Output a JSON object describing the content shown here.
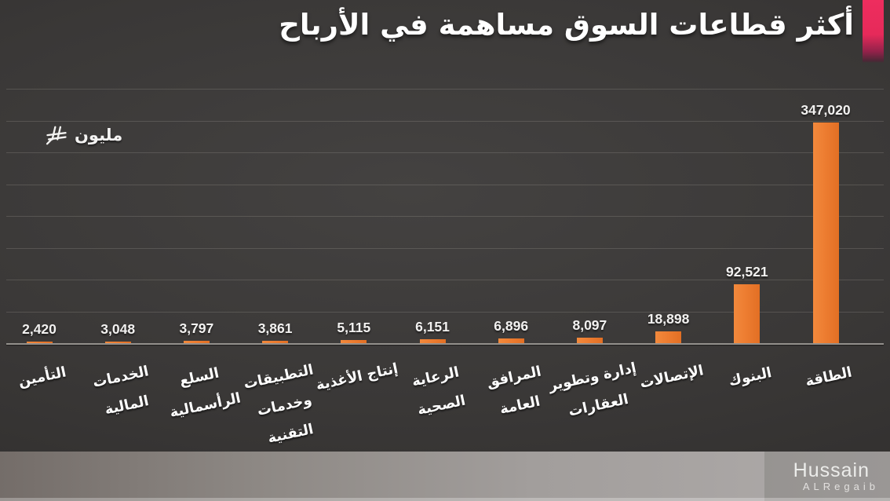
{
  "title": "أكثر قطاعات السوق مساهمة في الأرباح",
  "unit": {
    "label": "مليون",
    "currency_icon": "saudi-riyal-currency-icon",
    "full_unit": "مليون ريال"
  },
  "watermark": {
    "name": "Hussain",
    "surname": "ALRegaib"
  },
  "colors": {
    "bar": "#ED7D31",
    "accent_pink": "#E62A5B",
    "background": "#3A3837",
    "gridline": "#56534F",
    "axis": "#93908C",
    "text": "#FFFFFF",
    "bottom_strip": "#A29E9C"
  },
  "chart_data": {
    "type": "bar",
    "title": "أكثر قطاعات السوق مساهمة في الأرباح",
    "unit": "مليون ريال",
    "direction": "rtl",
    "note": "arrays listed in visual left-to-right order; chart reads right-to-left with largest sector at right",
    "categories": [
      "التأمين",
      "الخدمات المالية",
      "السلع الرأسمالية",
      "التطبيقات وخدمات التقنية",
      "إنتاج الأغذية",
      "الرعاية الصحية",
      "المرافق العامة",
      "إدارة وتطوير العقارات",
      "الإتصالات",
      "البنوك",
      "الطاقة"
    ],
    "category_lines": [
      [
        "التأمين"
      ],
      [
        "الخدمات",
        "المالية"
      ],
      [
        "السلع",
        "الرأسمالية"
      ],
      [
        "التطبيقات",
        "وخدمات",
        "التقنية"
      ],
      [
        "إنتاج الأغذية"
      ],
      [
        "الرعاية",
        "الصحية"
      ],
      [
        "المرافق",
        "العامة"
      ],
      [
        "إدارة وتطوير",
        "العقارات"
      ],
      [
        "الإتصالات"
      ],
      [
        "البنوك"
      ],
      [
        "الطاقة"
      ]
    ],
    "values": [
      2420,
      3048,
      3797,
      3861,
      5115,
      6151,
      6896,
      8097,
      18898,
      92521,
      347020
    ],
    "value_labels": [
      "2,420",
      "3,048",
      "3,797",
      "3,861",
      "5,115",
      "6,151",
      "6,896",
      "8,097",
      "18,898",
      "92,521",
      "347,020"
    ],
    "ylim": [
      0,
      400000
    ],
    "gridline_interval": 50000,
    "grid": "on",
    "legend": "none",
    "bar_color": "#ED7D31"
  }
}
